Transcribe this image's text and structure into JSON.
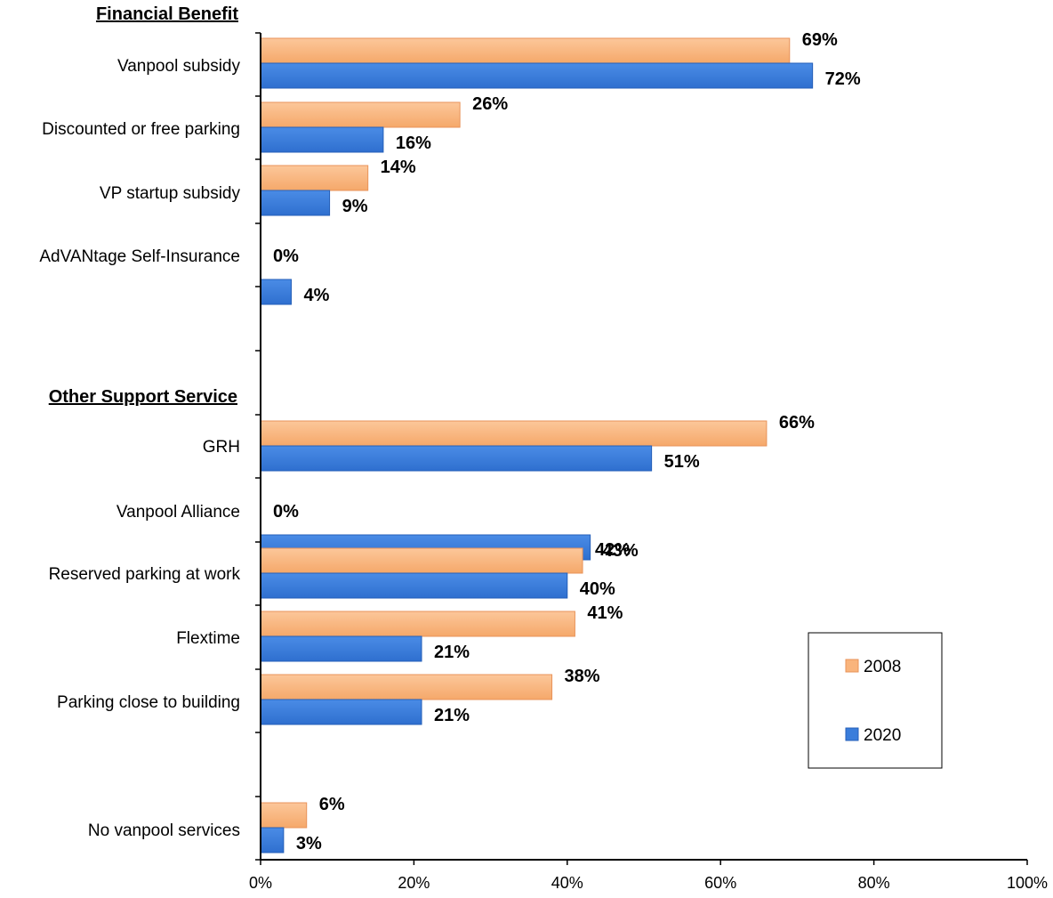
{
  "chart_data": {
    "type": "bar",
    "orientation": "horizontal",
    "title": "",
    "xlabel": "",
    "ylabel": "",
    "xlim": [
      0,
      100
    ],
    "x_ticks": [
      "0%",
      "20%",
      "40%",
      "60%",
      "80%",
      "100%"
    ],
    "grid": false,
    "legend_position": "bottom-right",
    "sections": [
      {
        "label": "Financial Benefit",
        "categories": [
          {
            "label": "Vanpool subsidy",
            "values": {
              "2008": 69,
              "2020": 72
            },
            "value_labels": {
              "2008": "69%",
              "2020": "72%"
            }
          },
          {
            "label": "Discounted or free parking",
            "values": {
              "2008": 26,
              "2020": 16
            },
            "value_labels": {
              "2008": "26%",
              "2020": "16%"
            }
          },
          {
            "label": "VP startup subsidy",
            "values": {
              "2008": 14,
              "2020": 9
            },
            "value_labels": {
              "2008": "14%",
              "2020": "9%"
            }
          },
          {
            "label": "AdVANtage Self-Insurance",
            "values": {
              "2008": 0,
              "2020": 4
            },
            "value_labels": {
              "2008": "0%",
              "2020": "4%"
            }
          }
        ]
      },
      {
        "label": "Other Support Service",
        "categories": [
          {
            "label": "GRH",
            "values": {
              "2008": 66,
              "2020": 51
            },
            "value_labels": {
              "2008": "66%",
              "2020": "51%"
            }
          },
          {
            "label": "Vanpool Alliance",
            "values": {
              "2008": 0,
              "2020": 43
            },
            "value_labels": {
              "2008": "0%",
              "2020": "43%"
            }
          },
          {
            "label": "Reserved parking at work",
            "values": {
              "2008": 42,
              "2020": 40
            },
            "value_labels": {
              "2008": "42%",
              "2020": "40%"
            }
          },
          {
            "label": "Flextime",
            "values": {
              "2008": 41,
              "2020": 21
            },
            "value_labels": {
              "2008": "41%",
              "2020": "21%"
            }
          },
          {
            "label": "Parking close to building",
            "values": {
              "2008": 38,
              "2020": 21
            },
            "value_labels": {
              "2008": "38%",
              "2020": "21%"
            }
          }
        ]
      },
      {
        "label": "",
        "categories": [
          {
            "label": "No vanpool services",
            "values": {
              "2008": 6,
              "2020": 3
            },
            "value_labels": {
              "2008": "6%",
              "2020": "3%"
            }
          }
        ]
      }
    ],
    "series": [
      {
        "name": "2008",
        "color": "#F9B47C"
      },
      {
        "name": "2020",
        "color": "#3A7DDB"
      }
    ]
  }
}
